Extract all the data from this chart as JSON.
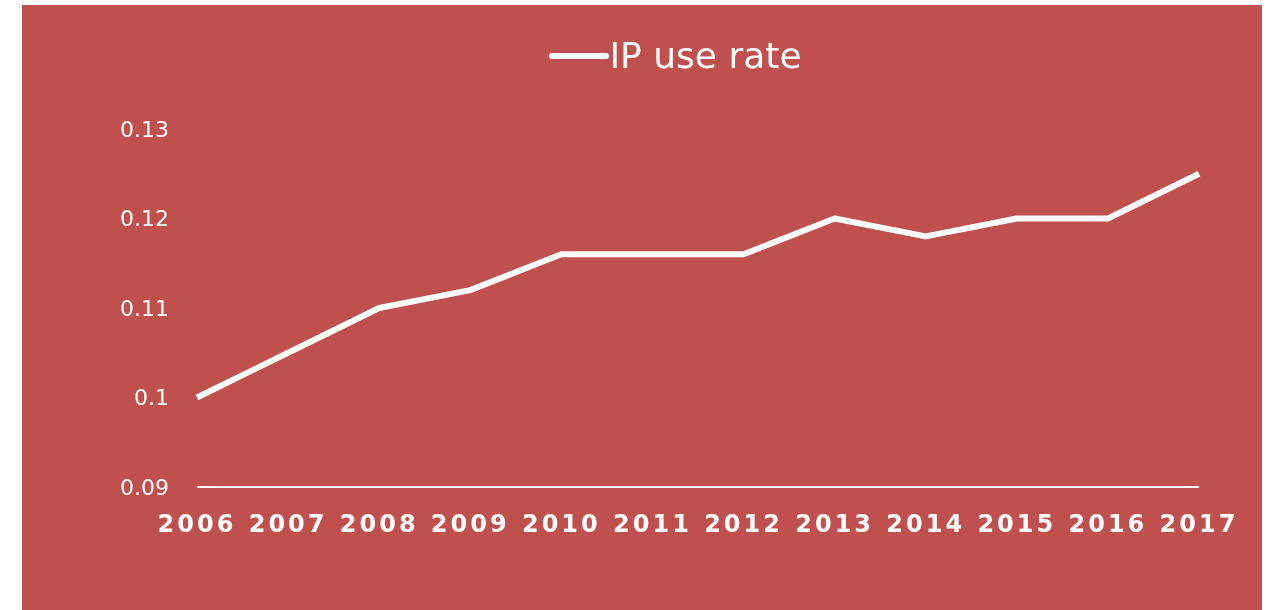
{
  "chart_data": {
    "type": "line",
    "categories": [
      "2006",
      "2007",
      "2008",
      "2009",
      "2010",
      "2011",
      "2012",
      "2013",
      "2014",
      "2015",
      "2016",
      "2017"
    ],
    "series": [
      {
        "name": "IP use rate",
        "color": "#ffffff",
        "values": [
          0.1,
          0.105,
          0.11,
          0.112,
          0.116,
          0.116,
          0.116,
          0.12,
          0.118,
          0.12,
          0.12,
          0.125
        ]
      }
    ],
    "ylim": [
      0.09,
      0.13
    ],
    "yticks": [
      0.09,
      0.1,
      0.11,
      0.12,
      0.13
    ],
    "grid": false,
    "legend": "top",
    "marker": "none",
    "line_style": "solid"
  }
}
